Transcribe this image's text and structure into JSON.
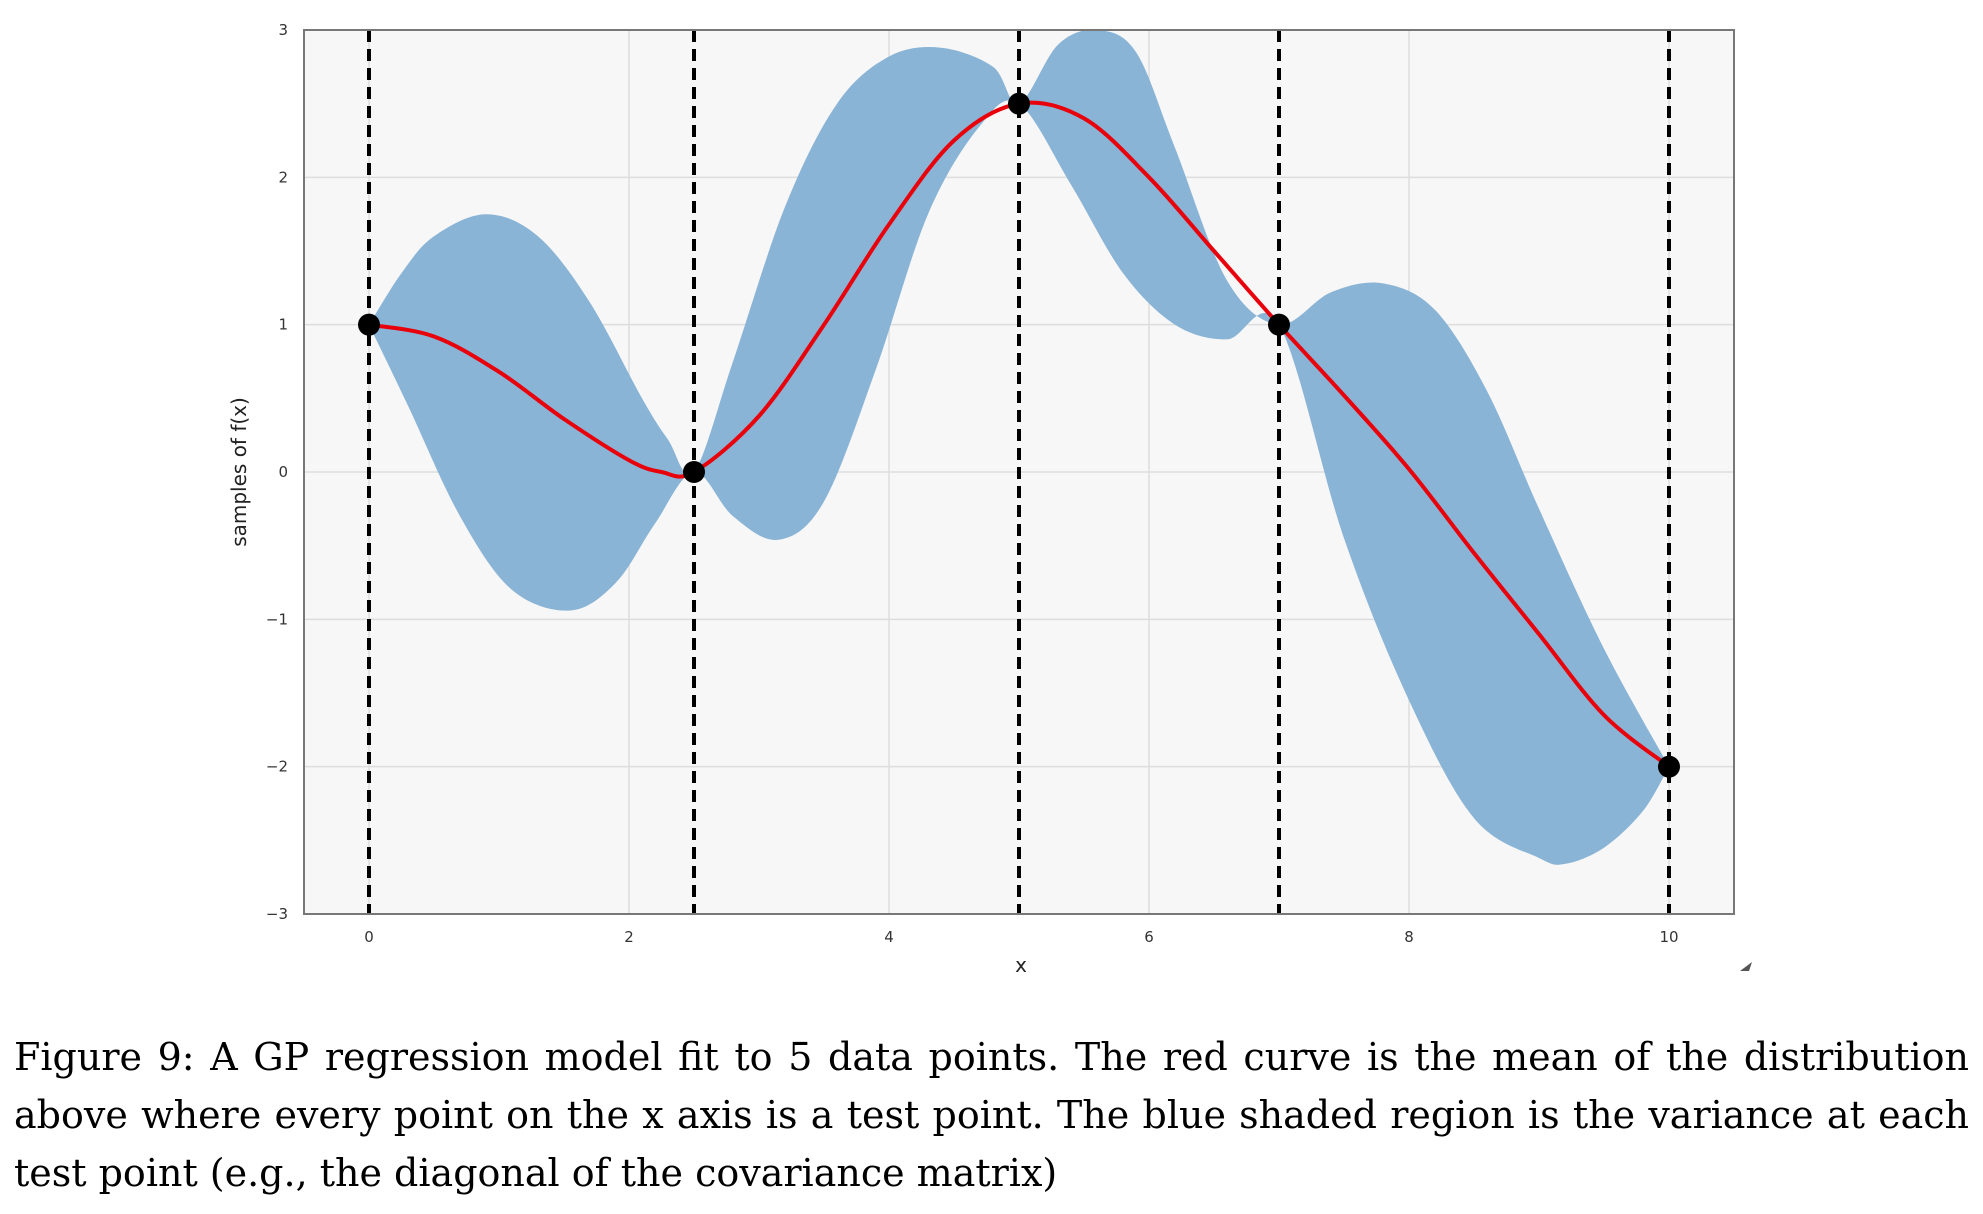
{
  "caption": "Figure 9: A GP regression model fit to 5 data points. The red curve is the mean of the distribution above where every point on the x axis is a test point. The blue shaded region is the variance at each test point (e.g., the diagonal of the covariance matrix)",
  "chart_data": {
    "type": "line",
    "title": "",
    "xlabel": "x",
    "ylabel": "samples of f(x)",
    "xlim": [
      -0.5,
      10.5
    ],
    "ylim": [
      -3,
      3
    ],
    "xticks": [
      0,
      2,
      4,
      6,
      8,
      10
    ],
    "yticks": [
      -3,
      -2,
      -1,
      0,
      1,
      2,
      3
    ],
    "xtick_labels": [
      "0",
      "2",
      "4",
      "6",
      "8",
      "10"
    ],
    "ytick_labels": [
      "−3",
      "−2",
      "−1",
      "0",
      "1",
      "2",
      "3"
    ],
    "grid": true,
    "colors": {
      "mean": "#e8000b",
      "band": "#8ab4d6",
      "points": "#000000",
      "vlines": "#000000",
      "plot_bg": "#f7f7f7",
      "grid": "#dddddd"
    },
    "training_points": {
      "x": [
        0,
        2.5,
        5,
        7,
        10
      ],
      "y": [
        1,
        0,
        2.5,
        1,
        -2
      ]
    },
    "vertical_lines_x": [
      0,
      2.5,
      5,
      7,
      10
    ],
    "mean_curve": {
      "x": [
        0,
        0.5,
        1,
        1.5,
        2,
        2.25,
        2.5,
        3,
        3.5,
        4,
        4.5,
        5,
        5.5,
        6,
        6.5,
        7,
        7.5,
        8,
        8.5,
        9,
        9.5,
        10
      ],
      "y": [
        1.0,
        0.92,
        0.68,
        0.36,
        0.08,
        0.0,
        0.0,
        0.38,
        1.0,
        1.68,
        2.25,
        2.5,
        2.4,
        2.0,
        1.5,
        1.0,
        0.52,
        0.02,
        -0.55,
        -1.1,
        -1.65,
        -2.0
      ]
    },
    "band_upper": {
      "x": [
        0,
        0.25,
        0.5,
        0.9,
        1.3,
        1.7,
        2.1,
        2.3,
        2.5,
        2.8,
        3.2,
        3.6,
        4.0,
        4.4,
        4.8,
        5.0,
        5.3,
        5.6,
        5.9,
        6.2,
        6.6,
        7.0,
        7.4,
        7.8,
        8.2,
        8.6,
        9.0,
        9.5,
        10
      ],
      "y": [
        1.0,
        1.35,
        1.6,
        1.75,
        1.6,
        1.15,
        0.5,
        0.22,
        0.0,
        0.75,
        1.8,
        2.5,
        2.82,
        2.88,
        2.75,
        2.5,
        2.9,
        3.0,
        2.85,
        2.2,
        1.3,
        1.0,
        1.22,
        1.28,
        1.1,
        0.55,
        -0.25,
        -1.2,
        -2.0
      ]
    },
    "band_lower": {
      "x": [
        0,
        0.3,
        0.7,
        1.1,
        1.55,
        1.9,
        2.2,
        2.5,
        2.8,
        3.15,
        3.5,
        3.9,
        4.3,
        4.7,
        5.0,
        5.4,
        5.8,
        6.2,
        6.6,
        7.0,
        7.5,
        8.0,
        8.5,
        9.0,
        9.2,
        9.5,
        9.8,
        10
      ],
      "y": [
        1.0,
        0.45,
        -0.3,
        -0.8,
        -0.94,
        -0.75,
        -0.35,
        0.0,
        -0.3,
        -0.46,
        -0.2,
        0.7,
        1.75,
        2.35,
        2.5,
        1.95,
        1.35,
        1.0,
        0.9,
        1.0,
        -0.45,
        -1.55,
        -2.35,
        -2.62,
        -2.66,
        -2.55,
        -2.3,
        -2.0
      ]
    }
  }
}
